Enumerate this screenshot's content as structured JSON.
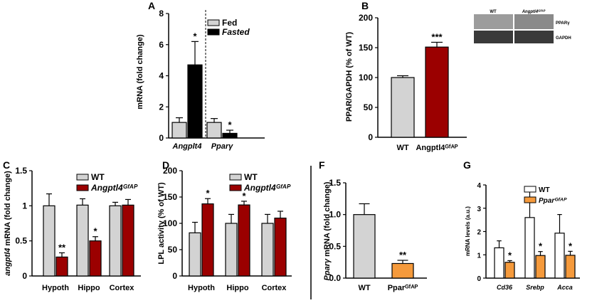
{
  "colors": {
    "light_gray": "#d3d3d3",
    "black": "#000000",
    "dark_red": "#9b0000",
    "orange": "#f59a3c",
    "white": "#ffffff"
  },
  "chart_data": [
    {
      "panel": "A",
      "type": "bar",
      "ylabel": "mRNA (fold change)",
      "ylim": [
        0,
        8
      ],
      "yticks": [
        "0",
        "2",
        "4",
        "6",
        "8"
      ],
      "categories": [
        "Angplt4",
        "Pparγ"
      ],
      "series": [
        {
          "name": "Fed",
          "color": "#d3d3d3",
          "values": [
            1.0,
            1.0
          ],
          "errors": [
            0.3,
            0.25
          ]
        },
        {
          "name": "Fasted",
          "color": "#000000",
          "values": [
            4.7,
            0.3
          ],
          "errors": [
            1.5,
            0.2
          ]
        }
      ],
      "significance": [
        {
          "category": 0,
          "series": 1,
          "label": "*"
        },
        {
          "category": 1,
          "series": 1,
          "label": "*"
        }
      ],
      "divider": "dashed",
      "legend": "top-right"
    },
    {
      "panel": "B",
      "type": "bar",
      "ylabel": "PPAR/GAPDH (% of WT)",
      "ylim": [
        0,
        200
      ],
      "yticks": [
        "0",
        "50",
        "100",
        "150",
        "200"
      ],
      "categories": [
        "WT",
        "Angptl4ᴳᶠᴬᴾ"
      ],
      "series": [
        {
          "values": [
            100,
            151
          ],
          "errors": [
            3,
            8
          ],
          "colors": [
            "#d3d3d3",
            "#9b0000"
          ]
        }
      ],
      "significance": [
        {
          "category": 1,
          "series": 0,
          "label": "***"
        }
      ],
      "blot": {
        "columns": [
          "WT",
          "Angptl4ᴳᶠᴬᴾ"
        ],
        "rows": [
          "PPARγ",
          "GAPDH"
        ]
      }
    },
    {
      "panel": "C",
      "type": "bar",
      "ylabel": "angptl4 mRNA (fold change)",
      "ylim": [
        0,
        1.5
      ],
      "yticks": [
        "0",
        "0.5",
        "1",
        "1.5"
      ],
      "categories": [
        "Hypoth",
        "Hippo",
        "Cortex"
      ],
      "series": [
        {
          "name": "WT",
          "color": "#d3d3d3",
          "values": [
            1.0,
            1.01,
            1.0
          ],
          "errors": [
            0.17,
            0.09,
            0.05
          ]
        },
        {
          "name": "Angptl4ᴳᶠᴬᴾ",
          "color": "#9b0000",
          "values": [
            0.27,
            0.5,
            1.01
          ],
          "errors": [
            0.06,
            0.06,
            0.08
          ]
        }
      ],
      "significance": [
        {
          "category": 0,
          "series": 1,
          "label": "**"
        },
        {
          "category": 1,
          "series": 1,
          "label": "*"
        }
      ],
      "legend": "top-right"
    },
    {
      "panel": "D",
      "type": "bar",
      "ylabel": "LPL activity (% of WT)",
      "ylim": [
        0,
        200
      ],
      "yticks": [
        "0",
        "50",
        "100",
        "150",
        "200"
      ],
      "categories": [
        "Hypoth",
        "Hippo",
        "Cortex"
      ],
      "series": [
        {
          "name": "WT",
          "color": "#d3d3d3",
          "values": [
            82,
            100,
            100
          ],
          "errors": [
            20,
            17,
            17
          ]
        },
        {
          "name": "Angptl4ᴳᶠᴬᴾ",
          "color": "#9b0000",
          "values": [
            137,
            135,
            110
          ],
          "errors": [
            10,
            7,
            13
          ]
        }
      ],
      "significance": [
        {
          "category": 0,
          "series": 1,
          "label": "*"
        },
        {
          "category": 1,
          "series": 1,
          "label": "*"
        }
      ],
      "legend": "top-right"
    },
    {
      "panel": "F",
      "type": "bar",
      "ylabel": "Pparγ mRNA (fold change)",
      "ylim": [
        0,
        1.5
      ],
      "yticks": [
        "0.0",
        "0.5",
        "1.0",
        "1.5"
      ],
      "categories": [
        "WT",
        "Pparᴳᶠᴬᴾ"
      ],
      "series": [
        {
          "values": [
            1.0,
            0.23
          ],
          "errors": [
            0.17,
            0.05
          ],
          "colors": [
            "#d3d3d3",
            "#f59a3c"
          ]
        }
      ],
      "significance": [
        {
          "category": 1,
          "series": 0,
          "label": "**"
        }
      ]
    },
    {
      "panel": "G",
      "type": "bar",
      "ylabel": "mRNA levels (a.u.)",
      "ylim": [
        0,
        4
      ],
      "yticks": [
        "0",
        "1",
        "2",
        "3",
        "4"
      ],
      "categories": [
        "Cd36",
        "Srebp",
        "Acca"
      ],
      "series": [
        {
          "name": "WT",
          "color": "#ffffff",
          "values": [
            1.3,
            2.6,
            1.93
          ],
          "errors": [
            0.3,
            1.3,
            0.8
          ]
        },
        {
          "name": "Pparᴳᶠᴬᴾ",
          "color": "#f59a3c",
          "values": [
            0.68,
            0.97,
            0.98
          ],
          "errors": [
            0.07,
            0.17,
            0.17
          ]
        }
      ],
      "significance": [
        {
          "category": 0,
          "series": 1,
          "label": "*"
        },
        {
          "category": 1,
          "series": 1,
          "label": "*"
        },
        {
          "category": 2,
          "series": 1,
          "label": "*"
        }
      ],
      "legend": "top-right"
    }
  ]
}
